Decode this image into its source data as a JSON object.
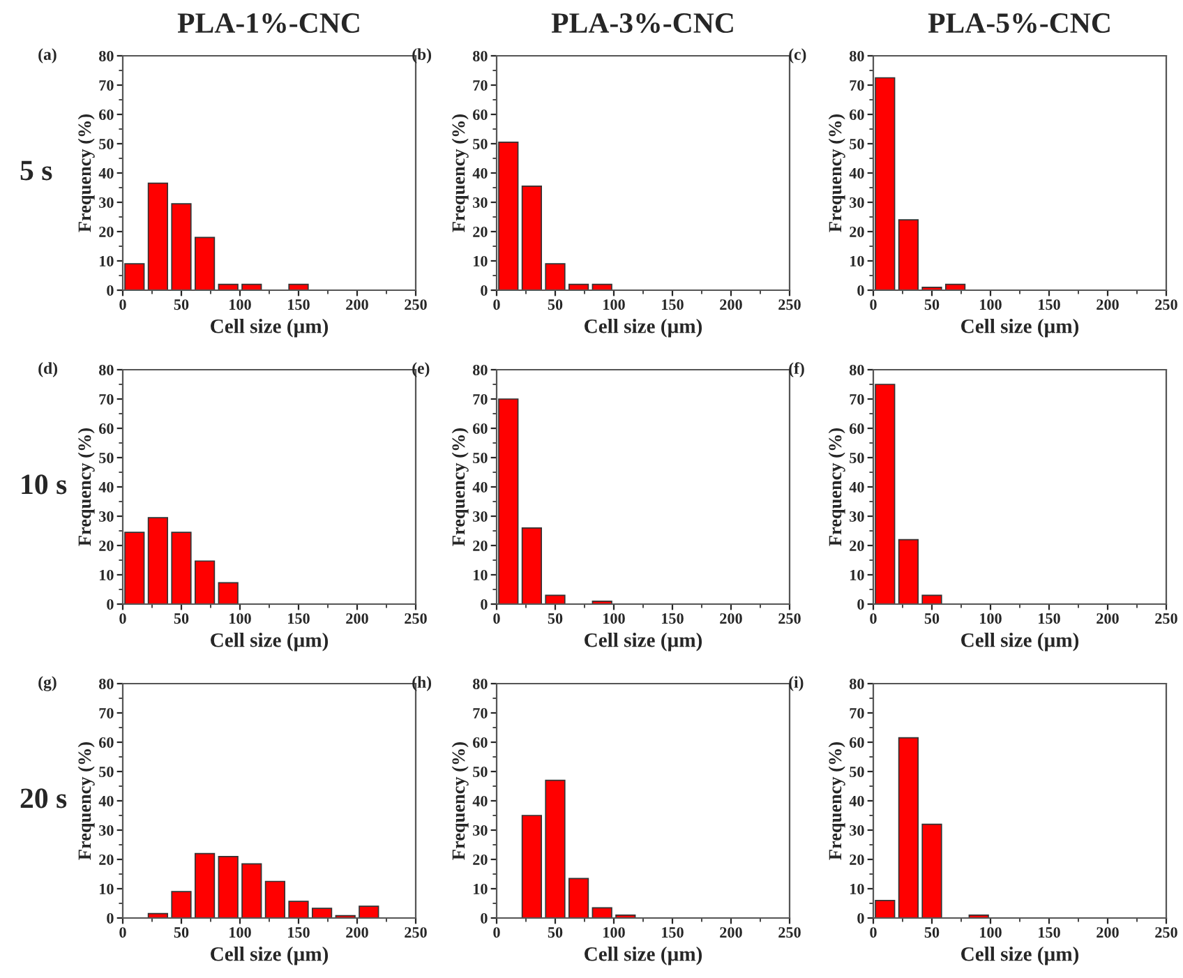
{
  "chart_data": [
    {
      "type": "histogram",
      "title": "PLA-1%-CNC",
      "annotations": [
        "(a)",
        "5 s"
      ],
      "xlabel": "Cell size (µm)",
      "ylabel": "Frequency (%)",
      "color": "#ff0000",
      "bins": [
        0,
        20,
        40,
        60,
        80,
        100,
        120,
        140,
        160
      ],
      "values": [
        9,
        36.5,
        29.5,
        18,
        2,
        2,
        0,
        2
      ],
      "xlim": [
        0,
        250
      ],
      "xticks": [
        0,
        50,
        100,
        150,
        200,
        250
      ],
      "ylim": [
        0,
        80
      ],
      "yticks": [
        0,
        10,
        20,
        30,
        40,
        50,
        60,
        70,
        80
      ]
    },
    {
      "type": "histogram",
      "title": "PLA-3%-CNC",
      "annotations": [
        "(b)"
      ],
      "xlabel": "Cell size (µm)",
      "ylabel": "Frequency (%)",
      "color": "#ff0000",
      "bins": [
        0,
        20,
        40,
        60,
        80,
        100
      ],
      "values": [
        50.5,
        35.5,
        9,
        2,
        2
      ],
      "xlim": [
        0,
        250
      ],
      "xticks": [
        0,
        50,
        100,
        150,
        200,
        250
      ],
      "ylim": [
        0,
        80
      ],
      "yticks": [
        0,
        10,
        20,
        30,
        40,
        50,
        60,
        70,
        80
      ]
    },
    {
      "type": "histogram",
      "title": "PLA-5%-CNC",
      "annotations": [
        "(c)"
      ],
      "xlabel": "Cell size (µm)",
      "ylabel": "Frequency (%)",
      "color": "#ff0000",
      "bins": [
        0,
        20,
        40,
        60,
        80
      ],
      "values": [
        72.5,
        24,
        1,
        2
      ],
      "xlim": [
        0,
        250
      ],
      "xticks": [
        0,
        50,
        100,
        150,
        200,
        250
      ],
      "ylim": [
        0,
        80
      ],
      "yticks": [
        0,
        10,
        20,
        30,
        40,
        50,
        60,
        70,
        80
      ]
    },
    {
      "type": "histogram",
      "annotations": [
        "(d)",
        "10 s"
      ],
      "xlabel": "Cell size (µm)",
      "ylabel": "Frequency (%)",
      "color": "#ff0000",
      "bins": [
        0,
        20,
        40,
        60,
        80,
        100
      ],
      "values": [
        24.5,
        29.5,
        24.5,
        14.7,
        7.3
      ],
      "xlim": [
        0,
        250
      ],
      "xticks": [
        0,
        50,
        100,
        150,
        200,
        250
      ],
      "ylim": [
        0,
        80
      ],
      "yticks": [
        0,
        10,
        20,
        30,
        40,
        50,
        60,
        70,
        80
      ]
    },
    {
      "type": "histogram",
      "annotations": [
        "(e)"
      ],
      "xlabel": "Cell size (µm)",
      "ylabel": "Frequency (%)",
      "color": "#ff0000",
      "bins": [
        0,
        20,
        40,
        60,
        80,
        100
      ],
      "values": [
        70,
        26,
        3,
        0,
        1
      ],
      "xlim": [
        0,
        250
      ],
      "xticks": [
        0,
        50,
        100,
        150,
        200,
        250
      ],
      "ylim": [
        0,
        80
      ],
      "yticks": [
        0,
        10,
        20,
        30,
        40,
        50,
        60,
        70,
        80
      ]
    },
    {
      "type": "histogram",
      "annotations": [
        "(f)"
      ],
      "xlabel": "Cell size (µm)",
      "ylabel": "Frequency (%)",
      "color": "#ff0000",
      "bins": [
        0,
        20,
        40,
        60
      ],
      "values": [
        75,
        22,
        3
      ],
      "xlim": [
        0,
        250
      ],
      "xticks": [
        0,
        50,
        100,
        150,
        200,
        250
      ],
      "ylim": [
        0,
        80
      ],
      "yticks": [
        0,
        10,
        20,
        30,
        40,
        50,
        60,
        70,
        80
      ]
    },
    {
      "type": "histogram",
      "annotations": [
        "(g)",
        "20 s"
      ],
      "xlabel": "Cell size (µm)",
      "ylabel": "Frequency (%)",
      "color": "#ff0000",
      "bins": [
        20,
        40,
        60,
        80,
        100,
        120,
        140,
        160,
        180,
        200,
        220
      ],
      "values": [
        1.5,
        9,
        22,
        21,
        18.5,
        12.5,
        5.7,
        3.3,
        0.8,
        4
      ],
      "xlim": [
        0,
        250
      ],
      "xticks": [
        0,
        50,
        100,
        150,
        200,
        250
      ],
      "ylim": [
        0,
        80
      ],
      "yticks": [
        0,
        10,
        20,
        30,
        40,
        50,
        60,
        70,
        80
      ]
    },
    {
      "type": "histogram",
      "annotations": [
        "(h)"
      ],
      "xlabel": "Cell size (µm)",
      "ylabel": "Frequency (%)",
      "color": "#ff0000",
      "bins": [
        20,
        40,
        60,
        80,
        100,
        120
      ],
      "values": [
        35,
        47,
        13.5,
        3.5,
        1
      ],
      "xlim": [
        0,
        250
      ],
      "xticks": [
        0,
        50,
        100,
        150,
        200,
        250
      ],
      "ylim": [
        0,
        80
      ],
      "yticks": [
        0,
        10,
        20,
        30,
        40,
        50,
        60,
        70,
        80
      ]
    },
    {
      "type": "histogram",
      "annotations": [
        "(i)"
      ],
      "xlabel": "Cell size (µm)",
      "ylabel": "Frequency (%)",
      "color": "#ff0000",
      "bins": [
        0,
        20,
        40,
        60,
        80,
        100
      ],
      "values": [
        6,
        61.5,
        32,
        0,
        1
      ],
      "xlim": [
        0,
        250
      ],
      "xticks": [
        0,
        50,
        100,
        150,
        200,
        250
      ],
      "ylim": [
        0,
        80
      ],
      "yticks": [
        0,
        10,
        20,
        30,
        40,
        50,
        60,
        70,
        80
      ]
    }
  ]
}
